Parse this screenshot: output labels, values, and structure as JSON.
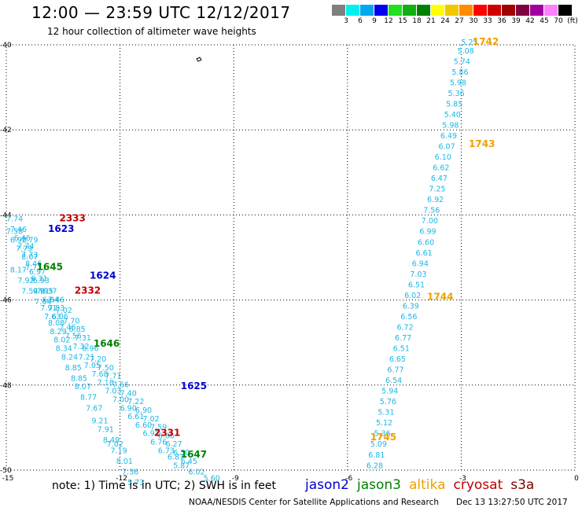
{
  "header": {
    "title": "12:00 — 23:59 UTC 12/12/2017",
    "subtitle": "12 hour collection of altimeter wave heights"
  },
  "colorbar": {
    "labels": [
      "3",
      "6",
      "9",
      "12",
      "15",
      "18",
      "21",
      "24",
      "27",
      "30",
      "33",
      "36",
      "39",
      "42",
      "45",
      "70",
      "(ft)"
    ],
    "colors": [
      "#7f7f7f",
      "#00f0f0",
      "#00a8f0",
      "#0000f0",
      "#20e020",
      "#10b010",
      "#008000",
      "#ffff00",
      "#f0c800",
      "#ff8c00",
      "#ff0000",
      "#d00000",
      "#a00000",
      "#800040",
      "#a000a0",
      "#ff80ff",
      "#000000"
    ]
  },
  "axes": {
    "x_ticks": [
      "-15",
      "-12",
      "-9",
      "-6",
      "-3",
      "0"
    ],
    "y_ticks": [
      "-40",
      "-42",
      "-44",
      "-46",
      "-48",
      "-50"
    ]
  },
  "note": "note:  1) Time is in UTC;  2) SWH is in feet",
  "satellites": [
    {
      "name": "jason2",
      "color": "#0000d0"
    },
    {
      "name": "jason3",
      "color": "#008000"
    },
    {
      "name": "altika",
      "color": "#f0a000"
    },
    {
      "name": "cryosat",
      "color": "#c00000"
    },
    {
      "name": "s3a",
      "color": "#800000"
    }
  ],
  "credit_left": "NOAA/NESDIS Center for Satellite Applications and Research",
  "credit_right": "Dec 13 13:27:50 UTC 2017",
  "wave_color": "#1ab7e6",
  "tracks": [
    {
      "sat": "altika",
      "color": "#f0a000",
      "times": [
        {
          "label": "1742",
          "lon": -2.7,
          "lat": -40.0
        },
        {
          "label": "1743",
          "lon": -2.8,
          "lat": -42.4
        },
        {
          "label": "1744",
          "lon": -3.9,
          "lat": -46.0
        },
        {
          "label": "1745",
          "lon": -5.4,
          "lat": -49.3
        }
      ],
      "points": [
        {
          "lon": -3.0,
          "lat": -40.0,
          "v": "5.25"
        },
        {
          "lon": -3.1,
          "lat": -40.2,
          "v": "5.08"
        },
        {
          "lon": -3.2,
          "lat": -40.45,
          "v": "5.74"
        },
        {
          "lon": -3.25,
          "lat": -40.7,
          "v": "5.86"
        },
        {
          "lon": -3.3,
          "lat": -40.95,
          "v": "5.98"
        },
        {
          "lon": -3.35,
          "lat": -41.2,
          "v": "5.36"
        },
        {
          "lon": -3.4,
          "lat": -41.45,
          "v": "5.85"
        },
        {
          "lon": -3.45,
          "lat": -41.7,
          "v": "5.40"
        },
        {
          "lon": -3.5,
          "lat": -41.95,
          "v": "5.98"
        },
        {
          "lon": -3.55,
          "lat": -42.2,
          "v": "6.49"
        },
        {
          "lon": -3.6,
          "lat": -42.45,
          "v": "6.07"
        },
        {
          "lon": -3.7,
          "lat": -42.7,
          "v": "6.10"
        },
        {
          "lon": -3.75,
          "lat": -42.95,
          "v": "6.62"
        },
        {
          "lon": -3.8,
          "lat": -43.2,
          "v": "6.47"
        },
        {
          "lon": -3.85,
          "lat": -43.45,
          "v": "7.25"
        },
        {
          "lon": -3.9,
          "lat": -43.7,
          "v": "6.92"
        },
        {
          "lon": -4.0,
          "lat": -43.95,
          "v": "7.56"
        },
        {
          "lon": -4.05,
          "lat": -44.2,
          "v": "7.00"
        },
        {
          "lon": -4.1,
          "lat": -44.45,
          "v": "6.99"
        },
        {
          "lon": -4.15,
          "lat": -44.7,
          "v": "6.60"
        },
        {
          "lon": -4.2,
          "lat": -44.95,
          "v": "6.61"
        },
        {
          "lon": -4.3,
          "lat": -45.2,
          "v": "6.94"
        },
        {
          "lon": -4.35,
          "lat": -45.45,
          "v": "7.03"
        },
        {
          "lon": -4.4,
          "lat": -45.7,
          "v": "6.51"
        },
        {
          "lon": -4.5,
          "lat": -45.95,
          "v": "6.02"
        },
        {
          "lon": -4.55,
          "lat": -46.2,
          "v": "6.39"
        },
        {
          "lon": -4.6,
          "lat": -46.45,
          "v": "6.56"
        },
        {
          "lon": -4.7,
          "lat": -46.7,
          "v": "6.72"
        },
        {
          "lon": -4.75,
          "lat": -46.95,
          "v": "6.77"
        },
        {
          "lon": -4.8,
          "lat": -47.2,
          "v": "6.51"
        },
        {
          "lon": -4.9,
          "lat": -47.45,
          "v": "6.65"
        },
        {
          "lon": -4.95,
          "lat": -47.7,
          "v": "6.77"
        },
        {
          "lon": -5.0,
          "lat": -47.95,
          "v": "6.54"
        },
        {
          "lon": -5.1,
          "lat": -48.2,
          "v": "5.94"
        },
        {
          "lon": -5.15,
          "lat": -48.45,
          "v": "5.76"
        },
        {
          "lon": -5.2,
          "lat": -48.7,
          "v": "5.31"
        },
        {
          "lon": -5.25,
          "lat": -48.95,
          "v": "5.12"
        },
        {
          "lon": -5.3,
          "lat": -49.2,
          "v": "5.36"
        },
        {
          "lon": -5.4,
          "lat": -49.45,
          "v": "5.09"
        },
        {
          "lon": -5.45,
          "lat": -49.7,
          "v": "6.81"
        },
        {
          "lon": -5.5,
          "lat": -49.95,
          "v": "6.28"
        }
      ]
    },
    {
      "sat": "jason2",
      "color": "#0000d0",
      "times": [
        {
          "label": "1623",
          "lon": -13.9,
          "lat": -44.4
        },
        {
          "label": "1624",
          "lon": -12.8,
          "lat": -45.5
        },
        {
          "label": "1625",
          "lon": -10.4,
          "lat": -48.1
        }
      ],
      "points": [
        {
          "lon": -14.9,
          "lat": -44.4,
          "v": "7.46"
        },
        {
          "lon": -14.8,
          "lat": -44.6,
          "v": "6.46"
        },
        {
          "lon": -14.7,
          "lat": -44.8,
          "v": "7.74"
        },
        {
          "lon": -14.6,
          "lat": -45.0,
          "v": "7.73"
        },
        {
          "lon": -14.5,
          "lat": -45.2,
          "v": "8.46"
        },
        {
          "lon": -14.4,
          "lat": -45.4,
          "v": "6.97"
        },
        {
          "lon": -14.3,
          "lat": -45.6,
          "v": "6.93"
        },
        {
          "lon": -14.1,
          "lat": -45.85,
          "v": "8.37"
        },
        {
          "lon": -13.9,
          "lat": -46.05,
          "v": "7.46"
        },
        {
          "lon": -13.7,
          "lat": -46.3,
          "v": "7.02"
        },
        {
          "lon": -13.5,
          "lat": -46.55,
          "v": "7.70"
        },
        {
          "lon": -13.35,
          "lat": -46.75,
          "v": "6.85"
        },
        {
          "lon": -13.2,
          "lat": -46.95,
          "v": "7.31"
        },
        {
          "lon": -13.0,
          "lat": -47.2,
          "v": "6.96"
        },
        {
          "lon": -12.8,
          "lat": -47.45,
          "v": "7.20"
        },
        {
          "lon": -12.6,
          "lat": -47.65,
          "v": "7.50"
        },
        {
          "lon": -12.4,
          "lat": -47.85,
          "v": "7.71"
        },
        {
          "lon": -12.2,
          "lat": -48.05,
          "v": "7.66"
        },
        {
          "lon": -12.0,
          "lat": -48.25,
          "v": "7.40"
        },
        {
          "lon": -11.8,
          "lat": -48.45,
          "v": "7.22"
        },
        {
          "lon": -11.6,
          "lat": -48.65,
          "v": "6.90"
        },
        {
          "lon": -11.4,
          "lat": -48.85,
          "v": "7.02"
        },
        {
          "lon": -11.2,
          "lat": -49.05,
          "v": "7.59"
        },
        {
          "lon": -11.0,
          "lat": -49.25,
          "v": "6.86"
        },
        {
          "lon": -10.8,
          "lat": -49.45,
          "v": "6.27"
        },
        {
          "lon": -10.6,
          "lat": -49.65,
          "v": "6.50"
        },
        {
          "lon": -10.4,
          "lat": -49.85,
          "v": "6.45"
        }
      ]
    },
    {
      "sat": "jason3",
      "color": "#008000",
      "times": [
        {
          "label": "1645",
          "lon": -14.2,
          "lat": -45.3
        },
        {
          "label": "1646",
          "lon": -12.7,
          "lat": -47.1
        },
        {
          "label": "1647",
          "lon": -10.4,
          "lat": -49.7
        }
      ],
      "points": [
        {
          "lon": -15.0,
          "lat": -44.45,
          "v": "7.58"
        },
        {
          "lon": -14.9,
          "lat": -44.65,
          "v": "6.90"
        },
        {
          "lon": -14.75,
          "lat": -44.85,
          "v": "7.79"
        },
        {
          "lon": -14.6,
          "lat": -45.05,
          "v": "8.07"
        },
        {
          "lon": -14.5,
          "lat": -45.3,
          "v": "7.71"
        },
        {
          "lon": -14.35,
          "lat": -45.55,
          "v": "6.31"
        },
        {
          "lon": -14.2,
          "lat": -45.85,
          "v": "7.95"
        },
        {
          "lon": -14.05,
          "lat": -46.05,
          "v": "6.84"
        },
        {
          "lon": -13.9,
          "lat": -46.25,
          "v": "7.83"
        },
        {
          "lon": -13.8,
          "lat": -46.45,
          "v": "6.06"
        },
        {
          "lon": -13.6,
          "lat": -46.7,
          "v": "7.46"
        },
        {
          "lon": -13.45,
          "lat": -46.9,
          "v": "7.56"
        },
        {
          "lon": -13.25,
          "lat": -47.15,
          "v": "7.32"
        },
        {
          "lon": -13.1,
          "lat": -47.4,
          "v": "7.21"
        },
        {
          "lon": -12.95,
          "lat": -47.6,
          "v": "7.05"
        },
        {
          "lon": -12.75,
          "lat": -47.8,
          "v": "7.68"
        },
        {
          "lon": -12.6,
          "lat": -48.0,
          "v": "7.18"
        },
        {
          "lon": -12.4,
          "lat": -48.2,
          "v": "7.03"
        },
        {
          "lon": -12.2,
          "lat": -48.4,
          "v": "7.00"
        },
        {
          "lon": -12.0,
          "lat": -48.6,
          "v": "6.90"
        },
        {
          "lon": -11.8,
          "lat": -48.8,
          "v": "6.61"
        },
        {
          "lon": -11.6,
          "lat": -49.0,
          "v": "6.60"
        },
        {
          "lon": -11.4,
          "lat": -49.2,
          "v": "6.91"
        },
        {
          "lon": -11.2,
          "lat": -49.4,
          "v": "6.76"
        },
        {
          "lon": -11.0,
          "lat": -49.6,
          "v": "6.73"
        },
        {
          "lon": -10.75,
          "lat": -49.75,
          "v": "6.87"
        },
        {
          "lon": -10.6,
          "lat": -49.95,
          "v": "5.87"
        },
        {
          "lon": -10.2,
          "lat": -50.1,
          "v": "6.02"
        },
        {
          "lon": -9.8,
          "lat": -50.25,
          "v": "5.60"
        }
      ]
    },
    {
      "sat": "cryosat",
      "color": "#c00000",
      "times": [
        {
          "label": "2333",
          "lon": -13.6,
          "lat": -44.15
        },
        {
          "label": "2332",
          "lon": -13.2,
          "lat": -45.85
        },
        {
          "label": "2331",
          "lon": -11.1,
          "lat": -49.2
        }
      ],
      "points": [
        {
          "lon": -15.0,
          "lat": -44.15,
          "v": "7.74"
        },
        {
          "lon": -14.6,
          "lat": -44.65,
          "v": "7.79"
        },
        {
          "lon": -14.9,
          "lat": -45.35,
          "v": "8.17"
        },
        {
          "lon": -14.7,
          "lat": -45.6,
          "v": "7.92"
        },
        {
          "lon": -14.6,
          "lat": -45.85,
          "v": "7.54"
        },
        {
          "lon": -14.3,
          "lat": -45.85,
          "v": "9.91"
        },
        {
          "lon": -14.25,
          "lat": -46.1,
          "v": "7.64"
        },
        {
          "lon": -14.1,
          "lat": -46.25,
          "v": "7.91"
        },
        {
          "lon": -14.0,
          "lat": -46.45,
          "v": "7.63"
        },
        {
          "lon": -13.9,
          "lat": -46.6,
          "v": "8.08"
        },
        {
          "lon": -13.85,
          "lat": -46.8,
          "v": "8.29"
        },
        {
          "lon": -13.75,
          "lat": -47.0,
          "v": "8.02"
        },
        {
          "lon": -13.7,
          "lat": -47.2,
          "v": "8.34"
        },
        {
          "lon": -13.55,
          "lat": -47.4,
          "v": "8.24"
        },
        {
          "lon": -13.45,
          "lat": -47.65,
          "v": "8.85"
        },
        {
          "lon": -13.3,
          "lat": -47.9,
          "v": "8.85"
        },
        {
          "lon": -13.2,
          "lat": -48.1,
          "v": "8.07"
        },
        {
          "lon": -13.05,
          "lat": -48.35,
          "v": "8.77"
        },
        {
          "lon": -12.9,
          "lat": -48.6,
          "v": "7.67"
        },
        {
          "lon": -12.75,
          "lat": -48.9,
          "v": "9.21"
        },
        {
          "lon": -12.6,
          "lat": -49.1,
          "v": "7.91"
        },
        {
          "lon": -12.45,
          "lat": -49.35,
          "v": "8.49"
        },
        {
          "lon": -12.35,
          "lat": -49.45,
          "v": "7.02"
        },
        {
          "lon": -12.25,
          "lat": -49.6,
          "v": "7.19"
        },
        {
          "lon": -12.1,
          "lat": -49.85,
          "v": "8.01"
        },
        {
          "lon": -11.95,
          "lat": -50.1,
          "v": "7.36"
        },
        {
          "lon": -11.8,
          "lat": -50.35,
          "v": "5.73"
        }
      ]
    }
  ]
}
